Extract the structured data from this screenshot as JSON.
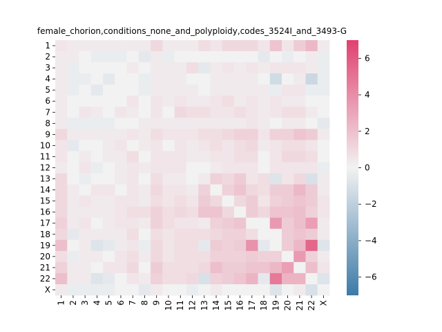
{
  "chart_data": {
    "type": "heatmap",
    "title": "female_chorion,conditions_none_and_polyploidy,codes_3524I_and_3493-G",
    "xlabel": "",
    "ylabel": "",
    "categories": [
      "1",
      "2",
      "3",
      "4",
      "5",
      "6",
      "7",
      "8",
      "9",
      "10",
      "11",
      "12",
      "13",
      "14",
      "15",
      "16",
      "17",
      "18",
      "19",
      "20",
      "21",
      "22",
      "X"
    ],
    "colorbar": {
      "min": -7,
      "max": 7,
      "ticks": [
        -6,
        -4,
        -2,
        0,
        2,
        4,
        6
      ]
    },
    "colors": {
      "negative": "#3d7aa8",
      "neutral": "#f2f2f2",
      "positive": "#e0416f"
    },
    "values": [
      [
        0.5,
        0.3,
        0.3,
        0.3,
        0.3,
        0.3,
        0.3,
        0.3,
        1.0,
        0.3,
        0.3,
        0.3,
        0.8,
        0.5,
        1.0,
        1.0,
        1.0,
        0.5,
        1.8,
        0.5,
        1.5,
        2.3,
        0.3
      ],
      [
        0.3,
        0.3,
        0.0,
        -0.3,
        -0.3,
        -0.3,
        0.0,
        -0.5,
        0.3,
        -0.3,
        0.0,
        0.0,
        0.0,
        0.0,
        0.0,
        0.0,
        0.0,
        -0.5,
        0.0,
        -0.3,
        0.0,
        0.3,
        -0.3
      ],
      [
        0.3,
        -0.3,
        0.0,
        0.0,
        0.0,
        0.0,
        0.3,
        0.0,
        0.3,
        0.3,
        0.3,
        0.8,
        -0.5,
        0.3,
        0.5,
        0.3,
        0.5,
        0.3,
        0.5,
        0.5,
        0.5,
        0.3,
        -0.3
      ],
      [
        0.3,
        -0.3,
        -0.3,
        0.0,
        -0.5,
        0.0,
        0.0,
        -0.3,
        0.3,
        0.3,
        0.3,
        0.0,
        0.0,
        0.3,
        0.3,
        0.3,
        0.3,
        0.0,
        -1.3,
        0.0,
        0.3,
        -1.5,
        -0.3
      ],
      [
        0.3,
        -0.3,
        0.0,
        -0.5,
        0.0,
        0.0,
        0.0,
        -0.3,
        0.3,
        0.3,
        0.3,
        0.3,
        0.0,
        0.3,
        0.3,
        0.3,
        0.3,
        0.3,
        -0.3,
        0.5,
        0.5,
        -0.3,
        -0.3
      ],
      [
        0.3,
        0.0,
        0.0,
        0.0,
        0.0,
        0.0,
        0.5,
        0.0,
        0.5,
        0.3,
        0.5,
        0.3,
        0.3,
        0.5,
        0.8,
        0.3,
        0.5,
        0.3,
        0.5,
        0.3,
        0.3,
        0.0,
        0.0
      ],
      [
        0.3,
        0.0,
        0.5,
        0.3,
        0.0,
        0.5,
        0.3,
        0.0,
        0.5,
        0.0,
        1.0,
        0.8,
        0.8,
        0.5,
        0.5,
        0.8,
        0.5,
        0.3,
        0.5,
        0.8,
        0.8,
        0.3,
        0.0
      ],
      [
        0.3,
        -0.3,
        -0.3,
        -0.3,
        -0.3,
        0.0,
        0.0,
        0.3,
        0.3,
        0.3,
        0.3,
        0.3,
        0.3,
        0.3,
        0.3,
        0.3,
        0.5,
        0.3,
        0.0,
        0.3,
        0.3,
        0.0,
        -0.5
      ],
      [
        1.0,
        0.3,
        0.3,
        0.3,
        0.3,
        0.3,
        0.5,
        0.3,
        0.8,
        0.5,
        0.5,
        0.5,
        0.8,
        0.8,
        1.0,
        1.3,
        1.3,
        0.5,
        1.3,
        1.3,
        1.8,
        1.5,
        0.3
      ],
      [
        0.5,
        -0.5,
        0.0,
        0.0,
        0.3,
        0.5,
        0.0,
        0.3,
        0.5,
        0.0,
        0.5,
        0.3,
        0.5,
        0.8,
        0.5,
        0.8,
        1.0,
        0.3,
        0.5,
        0.8,
        0.8,
        0.5,
        0.0
      ],
      [
        0.5,
        0.0,
        0.3,
        0.0,
        0.3,
        0.3,
        0.8,
        0.0,
        0.5,
        0.5,
        0.5,
        0.3,
        0.3,
        0.5,
        0.5,
        0.8,
        0.8,
        0.0,
        0.5,
        1.0,
        1.0,
        0.8,
        0.0
      ],
      [
        0.3,
        0.0,
        0.5,
        -0.3,
        0.0,
        0.3,
        0.5,
        0.3,
        0.5,
        0.5,
        0.5,
        0.0,
        0.0,
        0.3,
        0.5,
        0.5,
        0.5,
        0.0,
        0.5,
        0.5,
        0.5,
        0.5,
        -0.3
      ],
      [
        1.0,
        0.0,
        -0.3,
        0.0,
        0.0,
        0.3,
        0.5,
        0.0,
        0.8,
        0.3,
        0.3,
        0.0,
        0.3,
        1.3,
        1.0,
        1.5,
        0.5,
        0.8,
        -0.8,
        0.5,
        1.0,
        -1.0,
        0.3
      ],
      [
        1.0,
        0.3,
        0.0,
        0.5,
        0.5,
        0.0,
        0.5,
        0.3,
        1.0,
        0.5,
        0.5,
        0.3,
        1.3,
        0.0,
        1.3,
        1.8,
        1.0,
        0.8,
        1.5,
        1.5,
        2.3,
        1.5,
        0.3
      ],
      [
        1.0,
        0.3,
        0.5,
        0.3,
        0.3,
        0.5,
        0.5,
        0.3,
        0.8,
        0.5,
        0.8,
        0.5,
        1.5,
        1.0,
        0.0,
        1.0,
        1.5,
        0.5,
        1.3,
        1.5,
        1.8,
        1.5,
        0.5
      ],
      [
        1.0,
        0.3,
        0.3,
        0.3,
        0.3,
        0.5,
        0.8,
        0.8,
        1.3,
        0.8,
        1.0,
        0.8,
        1.8,
        1.8,
        1.0,
        0.0,
        1.5,
        1.0,
        1.8,
        1.8,
        2.0,
        1.3,
        0.5
      ],
      [
        1.3,
        0.3,
        0.5,
        0.0,
        0.3,
        0.5,
        0.5,
        0.3,
        1.3,
        0.8,
        0.5,
        0.5,
        0.3,
        1.3,
        1.5,
        1.8,
        0.0,
        0.0,
        3.5,
        1.5,
        2.0,
        3.3,
        0.3
      ],
      [
        1.0,
        -0.5,
        0.3,
        0.3,
        0.3,
        0.3,
        0.8,
        0.0,
        0.8,
        0.5,
        0.8,
        0.8,
        0.8,
        1.0,
        1.3,
        1.3,
        0.8,
        0.0,
        0.0,
        1.5,
        1.8,
        1.5,
        0.3
      ],
      [
        2.0,
        0.0,
        0.3,
        -0.8,
        -0.5,
        0.3,
        0.5,
        -0.3,
        1.0,
        0.5,
        0.8,
        0.8,
        -0.5,
        1.5,
        1.3,
        1.5,
        3.8,
        -0.5,
        0.0,
        1.5,
        2.3,
        5.5,
        -0.8
      ],
      [
        0.8,
        -0.3,
        0.3,
        0.3,
        0.0,
        0.5,
        0.8,
        0.3,
        1.0,
        0.5,
        0.8,
        0.8,
        0.8,
        1.3,
        1.3,
        1.3,
        1.5,
        1.3,
        1.3,
        0.0,
        3.5,
        1.3,
        0.3
      ],
      [
        1.3,
        0.3,
        0.3,
        0.0,
        0.5,
        0.5,
        1.0,
        0.0,
        1.5,
        0.8,
        0.8,
        0.8,
        1.0,
        2.0,
        1.5,
        1.5,
        1.8,
        1.8,
        2.3,
        3.3,
        0.0,
        2.0,
        0.5
      ],
      [
        2.0,
        0.3,
        0.3,
        -0.8,
        -0.5,
        0.0,
        0.5,
        0.3,
        1.3,
        0.8,
        0.8,
        1.0,
        -1.0,
        1.3,
        1.5,
        1.8,
        2.5,
        -0.5,
        4.8,
        2.5,
        2.5,
        0.0,
        -0.8
      ],
      [
        0.3,
        -0.3,
        -0.3,
        -0.3,
        -0.3,
        0.0,
        0.0,
        -0.5,
        0.3,
        0.0,
        0.0,
        -0.3,
        0.0,
        0.3,
        0.0,
        0.0,
        0.0,
        0.0,
        -0.8,
        0.0,
        0.3,
        -1.0,
        0.0
      ]
    ]
  }
}
